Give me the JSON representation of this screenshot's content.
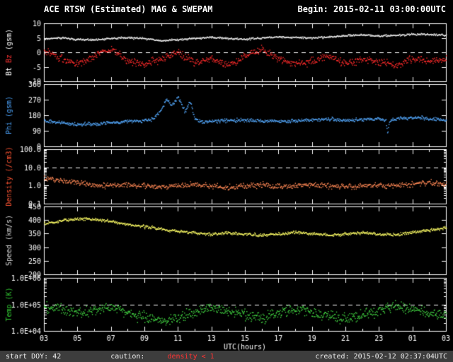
{
  "header": {
    "title": "ACE RTSW (Estimated) MAG & SWEPAM",
    "begin": "Begin: 2015-02-11 03:00:00UTC"
  },
  "footer": {
    "start_doy": "start DOY: 42",
    "caution_label": "caution:",
    "caution_value": "density < 1",
    "created": "created: 2015-02-12 02:37:04UTC",
    "bar_color": "#3d3d3d",
    "caution_value_color": "#ff3333"
  },
  "colors": {
    "background": "#000000",
    "axis": "#ffffff",
    "text": "#ffffff"
  },
  "chart_data": {
    "type": "scatter",
    "title": "ACE RTSW (Estimated) MAG & SWEPAM",
    "xlabel": "UTC(hours)",
    "x_range": [
      3,
      27
    ],
    "x_tick_labels": [
      "03",
      "05",
      "07",
      "09",
      "11",
      "13",
      "15",
      "17",
      "19",
      "21",
      "23",
      "01",
      "03"
    ],
    "x_tick_values": [
      3,
      5,
      7,
      9,
      11,
      13,
      15,
      17,
      19,
      21,
      23,
      25,
      27
    ],
    "x_minor_step": 1,
    "panels": [
      {
        "name": "mag-bt-bz",
        "scale": "linear",
        "ylim": [
          -10,
          10
        ],
        "ytick_values": [
          -10,
          -5,
          0,
          5,
          10
        ],
        "ytick_labels": [
          "-10",
          "-5",
          "0",
          "5",
          "10"
        ],
        "dashed_lines": [
          0
        ],
        "ylabel_parts": [
          {
            "text": "Bt",
            "color": "#ffffff"
          },
          {
            "text": "Bz",
            "color": "#ff3333"
          },
          {
            "text": "(gsm)",
            "color": "#ffffff"
          }
        ],
        "series": [
          {
            "name": "Bt",
            "color": "#f2f2f2",
            "jitter": 0.35,
            "x": [
              3,
              4,
              5,
              6,
              7,
              8,
              9,
              10,
              11,
              12,
              13,
              14,
              15,
              16,
              17,
              18,
              19,
              20,
              21,
              22,
              23,
              24,
              25,
              26,
              27
            ],
            "y": [
              4.8,
              5.2,
              4.6,
              4.4,
              5.0,
              5.2,
              4.9,
              4.2,
              4.5,
              5.0,
              5.3,
              4.9,
              4.7,
              5.1,
              5.5,
              5.3,
              5.1,
              5.4,
              5.9,
              6.2,
              5.8,
              6.0,
              6.4,
              6.3,
              6.0
            ]
          },
          {
            "name": "Bz",
            "color": "#ff2b2b",
            "jitter": 1.4,
            "x": [
              3,
              4,
              5,
              6,
              7,
              8,
              9,
              10,
              11,
              12,
              13,
              14,
              15,
              16,
              17,
              18,
              19,
              20,
              21,
              22,
              23,
              24,
              25,
              26,
              27
            ],
            "y": [
              0.5,
              -2.0,
              -3.8,
              -1.0,
              1.5,
              -3.0,
              -4.0,
              -2.0,
              0.0,
              -3.5,
              -2.0,
              -4.4,
              -1.0,
              1.0,
              -2.0,
              -4.0,
              -3.0,
              -1.0,
              -4.0,
              -2.0,
              -3.0,
              -4.4,
              -2.0,
              -3.0,
              -2.5
            ]
          }
        ]
      },
      {
        "name": "phi",
        "scale": "linear",
        "ylim": [
          0,
          360
        ],
        "ytick_values": [
          0,
          90,
          180,
          270,
          360
        ],
        "ytick_labels": [
          "0",
          "90",
          "180",
          "270",
          "360"
        ],
        "dashed_lines": [],
        "ylabel_parts": [
          {
            "text": "Phi (gsm)",
            "color": "#4da6ff"
          }
        ],
        "series": [
          {
            "name": "Phi",
            "color": "#55aaff",
            "jitter": 11,
            "x": [
              3,
              4,
              5,
              6,
              7,
              8,
              9,
              9.5,
              10,
              10.3,
              10.6,
              11,
              11.4,
              11.7,
              12,
              12.5,
              13,
              14,
              15,
              16,
              17,
              18,
              19,
              20,
              21,
              22,
              23,
              23.4,
              23.5,
              23.6,
              24,
              25,
              26,
              27
            ],
            "y": [
              150,
              141,
              129,
              133,
              140,
              147,
              152,
              163,
              212,
              278,
              236,
              286,
              202,
              266,
              156,
              143,
              148,
              151,
              155,
              150,
              146,
              151,
              156,
              161,
              153,
              158,
              162,
              150,
              72,
              150,
              161,
              170,
              163,
              152
            ]
          }
        ]
      },
      {
        "name": "density",
        "scale": "log",
        "ylim": [
          0.1,
          100
        ],
        "ytick_values": [
          0.1,
          1,
          10,
          100
        ],
        "ytick_labels": [
          "0.1",
          "1.0",
          "10.0",
          "100.0"
        ],
        "dashed_lines": [
          10
        ],
        "ylabel_parts": [
          {
            "text": "Density (/cm3)",
            "color": "#ff5533"
          }
        ],
        "series": [
          {
            "name": "Density",
            "color": "#ff8855",
            "jitter": 0.16,
            "x": [
              3,
              4,
              5,
              6,
              7,
              8,
              9,
              10,
              11,
              12,
              13,
              14,
              15,
              16,
              17,
              18,
              19,
              20,
              21,
              22,
              23,
              24,
              25,
              26,
              27
            ],
            "y": [
              2.6,
              2.0,
              1.5,
              1.1,
              1.0,
              1.2,
              1.0,
              0.9,
              1.0,
              1.2,
              1.0,
              0.8,
              1.0,
              1.1,
              0.9,
              1.0,
              1.2,
              1.0,
              0.9,
              1.0,
              1.1,
              1.0,
              1.3,
              1.6,
              1.2
            ]
          }
        ]
      },
      {
        "name": "speed",
        "scale": "linear",
        "ylim": [
          200,
          450
        ],
        "ytick_values": [
          200,
          250,
          300,
          350,
          400,
          450
        ],
        "ytick_labels": [
          "200",
          "250",
          "300",
          "350",
          "400",
          "450"
        ],
        "dashed_lines": [],
        "ylabel_parts": [
          {
            "text": "Speed (km/s)",
            "color": "#d9d9d9"
          }
        ],
        "series": [
          {
            "name": "Speed",
            "color": "#ffff66",
            "jitter": 6,
            "x": [
              3,
              4,
              5,
              6,
              7,
              8,
              9,
              10,
              11,
              12,
              13,
              14,
              15,
              16,
              17,
              18,
              19,
              20,
              21,
              22,
              23,
              24,
              25,
              26,
              27
            ],
            "y": [
              388,
              398,
              407,
              403,
              396,
              386,
              377,
              368,
              360,
              354,
              350,
              354,
              349,
              345,
              350,
              356,
              351,
              346,
              350,
              355,
              349,
              347,
              356,
              365,
              372
            ]
          }
        ]
      },
      {
        "name": "temp",
        "scale": "log",
        "ylim": [
          10000,
          1000000
        ],
        "ytick_values": [
          10000,
          100000,
          1000000
        ],
        "ytick_labels": [
          "1.0E+04",
          "1.0E+05",
          "1.0E+06"
        ],
        "dashed_lines": [
          100000
        ],
        "ylabel_parts": [
          {
            "text": "Temp (K)",
            "color": "#33cc33"
          }
        ],
        "series": [
          {
            "name": "Temp",
            "color": "#44dd44",
            "jitter": 0.22,
            "x": [
              3,
              4,
              5,
              6,
              7,
              8,
              9,
              10,
              11,
              12,
              13,
              14,
              15,
              16,
              17,
              18,
              19,
              20,
              21,
              22,
              23,
              24,
              25,
              26,
              27
            ],
            "y": [
              80000,
              70000,
              50000,
              60000,
              80000,
              50000,
              30000,
              25000,
              30000,
              50000,
              80000,
              60000,
              40000,
              30000,
              50000,
              70000,
              50000,
              40000,
              30000,
              40000,
              60000,
              95000,
              70000,
              50000,
              40000
            ]
          }
        ]
      }
    ]
  }
}
